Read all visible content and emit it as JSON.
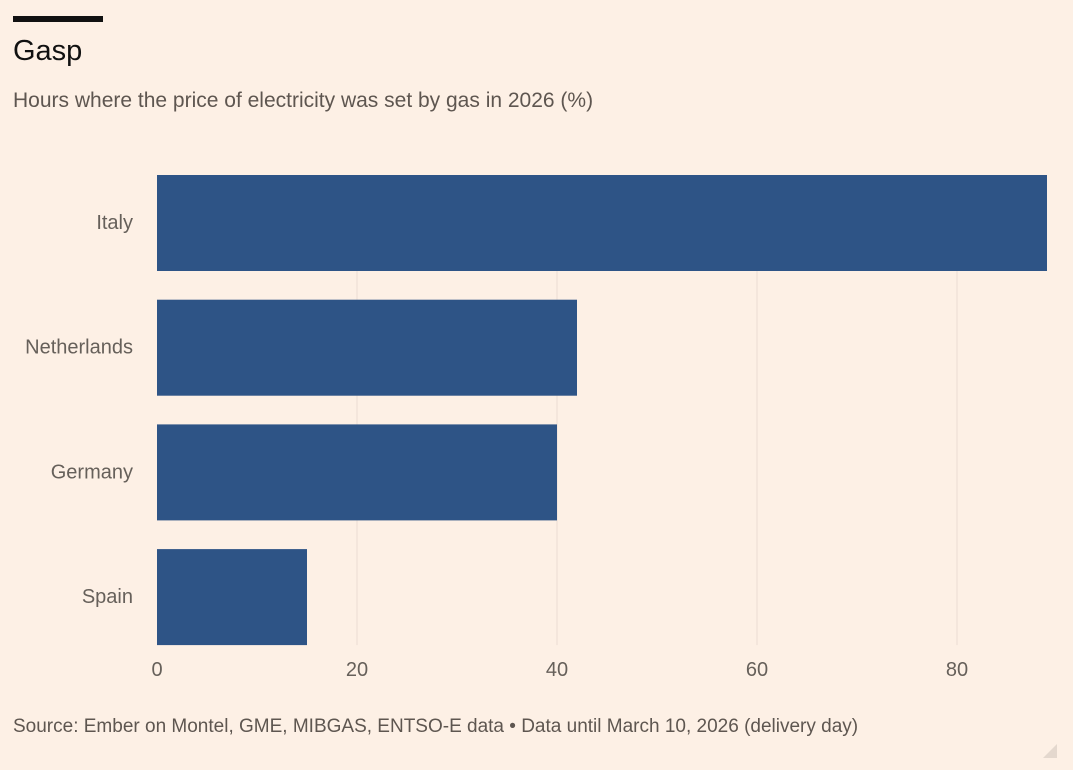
{
  "header": {
    "title": "Gasp",
    "subtitle": "Hours where the price of electricity was set by gas in 2026 (%)"
  },
  "footer": {
    "source": "Source: Ember on Montel, GME, MIBGAS, ENTSO-E data • Data until March 10, 2026 (delivery day)"
  },
  "colors": {
    "background": "#FDF0E5",
    "bar": "#2E5486",
    "gridline": "#EADDD2",
    "axis_text": "#66605A"
  },
  "chart_data": {
    "type": "bar",
    "orientation": "horizontal",
    "title": "Gasp",
    "subtitle": "Hours where the price of electricity was set by gas in 2026 (%)",
    "categories": [
      "Italy",
      "Netherlands",
      "Germany",
      "Spain"
    ],
    "values": [
      89,
      42,
      40,
      15
    ],
    "xlabel": "",
    "ylabel": "",
    "xlim": [
      0,
      90
    ],
    "xticks": [
      0,
      20,
      40,
      60,
      80
    ],
    "grid": true,
    "legend": "none"
  }
}
